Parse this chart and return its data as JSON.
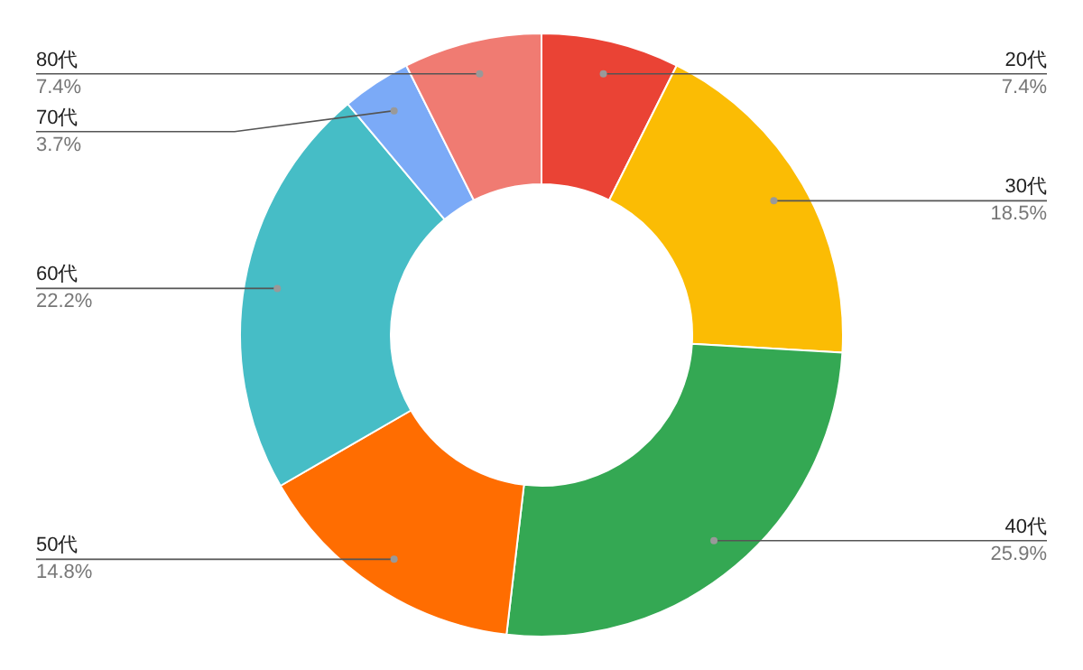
{
  "chart_data": {
    "type": "donut",
    "categories": [
      "20代",
      "30代",
      "40代",
      "50代",
      "60代",
      "70代",
      "80代"
    ],
    "values": [
      7.4,
      18.5,
      25.9,
      14.8,
      22.2,
      3.7,
      7.4
    ],
    "value_labels": [
      "7.4%",
      "18.5%",
      "25.9%",
      "14.8%",
      "22.2%",
      "3.7%",
      "7.4%"
    ],
    "colors": [
      "#ea4335",
      "#fbbc04",
      "#34a853",
      "#ff6d01",
      "#46bdc6",
      "#7baaf7",
      "#f07b72"
    ],
    "legend": false
  }
}
